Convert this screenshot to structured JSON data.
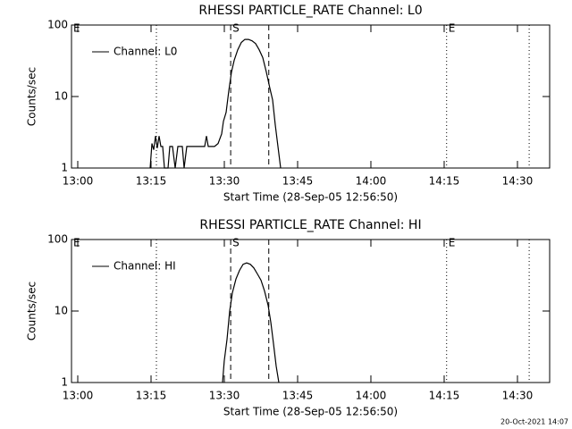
{
  "chart_data": [
    {
      "type": "line",
      "title": "RHESSI PARTICLE_RATE Channel: L0",
      "xlabel": "Start Time (28-Sep-05 12:56:50)",
      "ylabel": "Counts/sec",
      "yscale": "log",
      "ylim": [
        1,
        100
      ],
      "yticks": [
        1,
        10,
        100
      ],
      "xlim": [
        778.72,
        876.59
      ],
      "xticks": [
        {
          "value": 780,
          "label": "13:00"
        },
        {
          "value": 795,
          "label": "13:15"
        },
        {
          "value": 810,
          "label": "13:30"
        },
        {
          "value": 825,
          "label": "13:45"
        },
        {
          "value": 840,
          "label": "14:00"
        },
        {
          "value": 855,
          "label": "14:15"
        },
        {
          "value": 870,
          "label": "14:30"
        }
      ],
      "legend": "upper left",
      "lines": [
        {
          "x": 796.1,
          "style": "dotted"
        },
        {
          "x": 811.3,
          "style": "dashed"
        },
        {
          "x": 819.1,
          "style": "dashed"
        },
        {
          "x": 855.5,
          "style": "dotted"
        },
        {
          "x": 872.4,
          "style": "dotted"
        }
      ],
      "markers": [
        {
          "label": "E",
          "x": 778.72
        },
        {
          "label": "S",
          "x": 811.3
        },
        {
          "label": "E",
          "x": 855.5
        }
      ],
      "x": [
        794.82,
        795.18,
        795.55,
        795.91,
        796.28,
        796.65,
        797.01,
        797.38,
        797.74,
        798.48,
        798.84,
        799.39,
        799.94,
        800.49,
        801.4,
        801.77,
        802.32,
        803.41,
        805.24,
        805.98,
        806.34,
        806.71,
        807.99,
        808.72,
        809.45,
        809.82,
        810.37,
        810.91,
        811.46,
        812.01,
        812.74,
        813.48,
        814.21,
        814.94,
        815.67,
        816.4,
        817.13,
        817.87,
        818.6,
        819.33,
        819.88,
        820.43,
        820.98,
        821.52
      ],
      "series": [
        {
          "name": "Channel: L0",
          "color": "#000000",
          "values": [
            1,
            2.2,
            1.8,
            2.8,
            1.9,
            2.8,
            2,
            2,
            1,
            1,
            2,
            2,
            1,
            2,
            2,
            1,
            2,
            2,
            2,
            2,
            2.8,
            2,
            2,
            2.2,
            3,
            4.5,
            6,
            12,
            22,
            32,
            45,
            57,
            63,
            63,
            60,
            55,
            45,
            35,
            22,
            13,
            9,
            4,
            2,
            1
          ]
        }
      ]
    },
    {
      "type": "line",
      "title": "RHESSI PARTICLE_RATE Channel: HI",
      "xlabel": "Start Time (28-Sep-05 12:56:50)",
      "ylabel": "Counts/sec",
      "yscale": "log",
      "ylim": [
        1,
        100
      ],
      "yticks": [
        1,
        10,
        100
      ],
      "xlim": [
        778.72,
        876.59
      ],
      "xticks": [
        {
          "value": 780,
          "label": "13:00"
        },
        {
          "value": 795,
          "label": "13:15"
        },
        {
          "value": 810,
          "label": "13:30"
        },
        {
          "value": 825,
          "label": "13:45"
        },
        {
          "value": 840,
          "label": "14:00"
        },
        {
          "value": 855,
          "label": "14:15"
        },
        {
          "value": 870,
          "label": "14:30"
        }
      ],
      "legend": "upper left",
      "lines": [
        {
          "x": 796.1,
          "style": "dotted"
        },
        {
          "x": 811.3,
          "style": "dashed"
        },
        {
          "x": 819.1,
          "style": "dashed"
        },
        {
          "x": 855.5,
          "style": "dotted"
        },
        {
          "x": 872.4,
          "style": "dotted"
        }
      ],
      "markers": [
        {
          "label": "E",
          "x": 778.72
        },
        {
          "label": "S",
          "x": 811.3
        },
        {
          "label": "E",
          "x": 855.5
        }
      ],
      "x": [
        809.63,
        809.99,
        810.55,
        811.1,
        811.65,
        812.38,
        813.11,
        813.84,
        814.57,
        815.3,
        816.04,
        816.77,
        817.5,
        818.23,
        818.96,
        819.51,
        820.06,
        820.61,
        821.16
      ],
      "series": [
        {
          "name": "Channel: HI",
          "color": "#000000",
          "values": [
            1,
            2,
            4,
            10,
            18,
            28,
            37,
            45,
            47,
            45,
            40,
            33,
            27,
            19,
            12,
            7,
            3.5,
            1.7,
            1
          ]
        }
      ]
    }
  ],
  "footer": "20-Oct-2021 14:07"
}
